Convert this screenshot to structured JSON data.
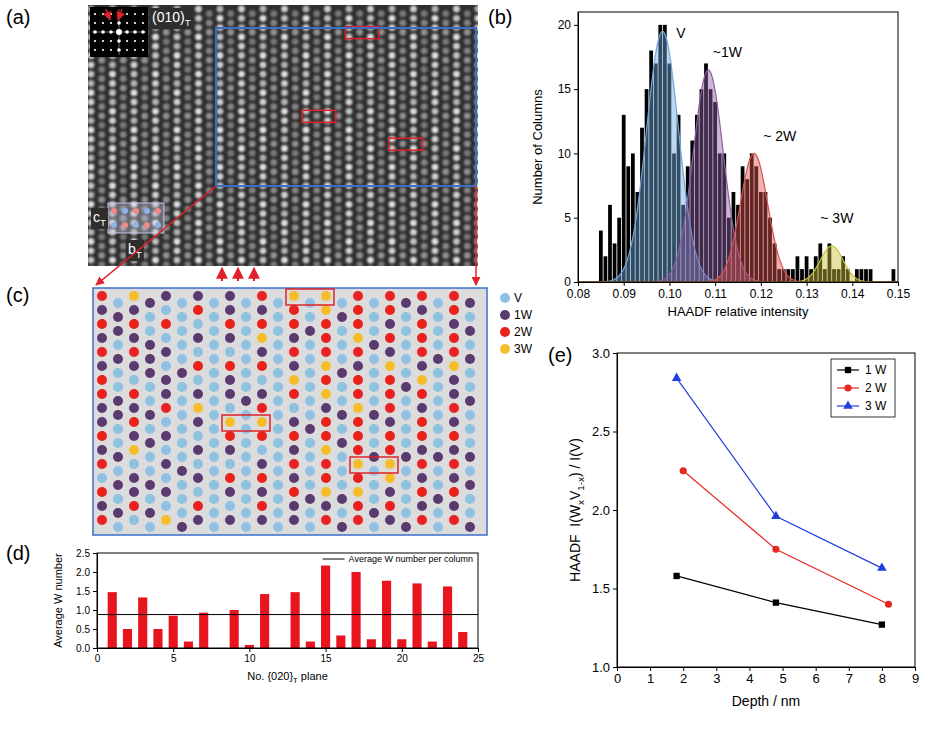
{
  "image_panel": {
    "panel_label": "(a)",
    "fft_label": [
      "(010)",
      "T"
    ],
    "axis_labels": [
      [
        "c",
        "T"
      ],
      [
        "b",
        "T"
      ]
    ]
  },
  "chart_data": [
    {
      "type": "histogram",
      "panel_label": "(b)",
      "xlabel": "HAADF relative intensity",
      "ylabel": "Number of Columns",
      "bins": [
        0.0845,
        0.0855,
        0.0865,
        0.0875,
        0.0885,
        0.0895,
        0.0905,
        0.0915,
        0.0925,
        0.0935,
        0.0945,
        0.0955,
        0.0965,
        0.0975,
        0.0985,
        0.0995,
        0.1005,
        0.1015,
        0.1025,
        0.1035,
        0.1045,
        0.1055,
        0.1065,
        0.1075,
        0.1085,
        0.1095,
        0.1105,
        0.1115,
        0.1125,
        0.1135,
        0.1145,
        0.1155,
        0.1165,
        0.1175,
        0.1185,
        0.1195,
        0.1205,
        0.1215,
        0.1225,
        0.1235,
        0.1245,
        0.1255,
        0.1265,
        0.1275,
        0.1285,
        0.1295,
        0.1305,
        0.1315,
        0.1325,
        0.1335,
        0.1345,
        0.1355,
        0.1365,
        0.1375,
        0.1385,
        0.1395,
        0.1405,
        0.1415,
        0.1425,
        0.1435,
        0.1445,
        0.1455,
        0.1465,
        0.1475,
        0.1485,
        0.1495
      ],
      "values": [
        4,
        2,
        6,
        3,
        5,
        13,
        9,
        10,
        7,
        12,
        15,
        18,
        17,
        20,
        20,
        17,
        10,
        13,
        6,
        9,
        11,
        13,
        15,
        17,
        15,
        14,
        10,
        10,
        5,
        7,
        6,
        9,
        8,
        10,
        9,
        7,
        7,
        5,
        3,
        1,
        1,
        1,
        1,
        2,
        1,
        2,
        1,
        2,
        3,
        1,
        3,
        1,
        1,
        2,
        1,
        0,
        1,
        1,
        1,
        1,
        0,
        0,
        0,
        0,
        1
      ],
      "color": "#000000",
      "xlim": [
        0.08,
        0.15
      ],
      "xticks": [
        0.08,
        0.09,
        {
          "value": 0.1,
          "label": "0.10"
        },
        0.11,
        0.12,
        0.13,
        0.14,
        0.15
      ],
      "ylim": [
        0,
        21
      ],
      "yticks": [
        0,
        5,
        10,
        15,
        20
      ],
      "fits": [
        {
          "center": 0.0985,
          "height": 19.5,
          "sigma": 0.0035,
          "color": "#6fa8dc"
        },
        {
          "center": 0.1085,
          "height": 16.5,
          "sigma": 0.0033,
          "color": "#8e5ea2"
        },
        {
          "center": 0.1185,
          "height": 10,
          "sigma": 0.003,
          "color": "#d9534f"
        },
        {
          "center": 0.1355,
          "height": 2.8,
          "sigma": 0.0025,
          "color": "#c9c23a"
        }
      ],
      "annotations": [
        {
          "text": "V",
          "x": 0.1015,
          "y": 19
        },
        {
          "text": "~1W",
          "x": 0.1095,
          "y": 17.5
        },
        {
          "text": "~ 2W",
          "x": 0.1205,
          "y": 11
        },
        {
          "text": "~ 3W",
          "x": 0.133,
          "y": 4.6
        }
      ]
    },
    {
      "type": "bar",
      "panel_label": "(d)",
      "xlabel": [
        "No. {020}",
        "T",
        " plane"
      ],
      "ylabel": "Average W number",
      "x": [
        1,
        2,
        3,
        4,
        5,
        6,
        7,
        8,
        9,
        10,
        11,
        12,
        13,
        14,
        15,
        16,
        17,
        18,
        19,
        20,
        21,
        22,
        23,
        24
      ],
      "values": [
        1.47,
        0.5,
        1.33,
        0.5,
        0.85,
        0.17,
        0.93,
        0,
        1.0,
        0.08,
        1.42,
        0,
        1.47,
        0.17,
        2.17,
        0.33,
        2.0,
        0.23,
        1.77,
        0.23,
        1.7,
        0.17,
        1.62,
        0.42
      ],
      "color": "#e8141e",
      "xlim": [
        0,
        25
      ],
      "xticks": [
        0,
        5,
        10,
        15,
        20,
        25
      ],
      "ylim": [
        0,
        2.5
      ],
      "yticks": [
        {
          "value": 0,
          "label": "0.0"
        },
        0.5,
        {
          "value": 1,
          "label": "1.0"
        },
        1.5,
        {
          "value": 2,
          "label": "2.0"
        },
        2.5
      ],
      "reference_line": {
        "value": 0.88,
        "label": "Average W number per column"
      },
      "legend": "top-right"
    },
    {
      "type": "line",
      "panel_label": "(e)",
      "xlabel": "Depth / nm",
      "ylabel": [
        "HAADF  I(W",
        "x",
        "V",
        "1-x",
        ") / I(V)"
      ],
      "xlim": [
        0,
        9
      ],
      "xticks": [
        0,
        1,
        2,
        3,
        4,
        5,
        6,
        7,
        8,
        9
      ],
      "ylim": [
        1,
        3
      ],
      "yticks": [
        {
          "value": 1,
          "label": "1.0"
        },
        1.5,
        {
          "value": 2,
          "label": "2.0"
        },
        2.5,
        {
          "value": 3,
          "label": "3.0"
        }
      ],
      "legend": "top-right",
      "series": [
        {
          "name": "1 W",
          "color": "#000000",
          "marker": "square",
          "line_style": "solid",
          "x": [
            1.8,
            4.8,
            8.0
          ],
          "values": [
            1.58,
            1.41,
            1.27
          ]
        },
        {
          "name": "2 W",
          "color": "#e8281e",
          "marker": "circle",
          "line_style": "solid",
          "x": [
            2.0,
            4.8,
            8.2
          ],
          "values": [
            2.25,
            1.75,
            1.4
          ]
        },
        {
          "name": "3 W",
          "color": "#1f3fe0",
          "marker": "triangle",
          "line_style": "solid",
          "x": [
            1.8,
            4.8,
            8.0
          ],
          "values": [
            2.84,
            1.96,
            1.63
          ]
        }
      ]
    }
  ],
  "map_panel": {
    "panel_label": "(c)",
    "legend": [
      {
        "label": "V",
        "color": "#8fc1e3"
      },
      {
        "label": "1W",
        "color": "#5b3a70"
      },
      {
        "label": "2W",
        "color": "#e8211c"
      },
      {
        "label": "3W",
        "color": "#f5bd2a"
      }
    ],
    "columns": [
      [
        2,
        1,
        2,
        1,
        2,
        1,
        2,
        2,
        1,
        1,
        2,
        1,
        2,
        0,
        2,
        1,
        2
      ],
      [
        0,
        1,
        1,
        0,
        1,
        0,
        0,
        1,
        1,
        0,
        0,
        1,
        0,
        1,
        0,
        1,
        0
      ],
      [
        3,
        1,
        2,
        1,
        2,
        1,
        0,
        2,
        1,
        2,
        1,
        3,
        0,
        1,
        1,
        2,
        0
      ],
      [
        1,
        0,
        0,
        1,
        1,
        1,
        0,
        0,
        1,
        0,
        1,
        0,
        0,
        1,
        0,
        1,
        0
      ],
      [
        1,
        0,
        2,
        0,
        1,
        0,
        1,
        1,
        2,
        0,
        1,
        0,
        1,
        0,
        1,
        0,
        3
      ],
      [
        0,
        0,
        0,
        0,
        0,
        1,
        0,
        0,
        0,
        0,
        0,
        0,
        1,
        0,
        0,
        0,
        1
      ],
      [
        1,
        2,
        0,
        1,
        0,
        2,
        0,
        1,
        3,
        1,
        0,
        1,
        0,
        1,
        0,
        2,
        1
      ],
      [
        0,
        0,
        0,
        0,
        0,
        0,
        0,
        0,
        0,
        0,
        0,
        0,
        0,
        0,
        0,
        0,
        0
      ],
      [
        1,
        1,
        2,
        1,
        0,
        2,
        1,
        1,
        0,
        3,
        2,
        1,
        0,
        2,
        1,
        0,
        1
      ],
      [
        0,
        0,
        0,
        0,
        0,
        0,
        0,
        1,
        0,
        0,
        0,
        0,
        0,
        0,
        0,
        0,
        0
      ],
      [
        2,
        1,
        2,
        3,
        1,
        2,
        0,
        1,
        2,
        3,
        2,
        0,
        1,
        2,
        1,
        2,
        1
      ],
      [
        0,
        0,
        0,
        0,
        0,
        0,
        0,
        0,
        0,
        0,
        0,
        0,
        0,
        0,
        0,
        0,
        0
      ],
      [
        3,
        2,
        2,
        1,
        2,
        1,
        3,
        2,
        0,
        1,
        2,
        1,
        2,
        1,
        2,
        1,
        1
      ],
      [
        0,
        0,
        1,
        0,
        0,
        0,
        0,
        0,
        0,
        1,
        0,
        0,
        0,
        0,
        1,
        0,
        0
      ],
      [
        3,
        3,
        2,
        2,
        2,
        3,
        2,
        3,
        1,
        2,
        2,
        3,
        2,
        2,
        3,
        1,
        2
      ],
      [
        0,
        1,
        0,
        0,
        0,
        1,
        0,
        0,
        1,
        0,
        1,
        0,
        0,
        0,
        1,
        0,
        1
      ],
      [
        2,
        2,
        2,
        3,
        2,
        1,
        2,
        2,
        3,
        2,
        2,
        2,
        3,
        2,
        3,
        2,
        2
      ],
      [
        0,
        0,
        0,
        1,
        0,
        0,
        0,
        0,
        1,
        0,
        0,
        1,
        0,
        0,
        0,
        1,
        0
      ],
      [
        2,
        2,
        1,
        2,
        1,
        3,
        2,
        2,
        2,
        1,
        2,
        2,
        3,
        3,
        1,
        2,
        1
      ],
      [
        1,
        0,
        0,
        0,
        0,
        0,
        1,
        0,
        0,
        0,
        0,
        1,
        0,
        0,
        0,
        0,
        1
      ],
      [
        2,
        1,
        2,
        2,
        2,
        1,
        3,
        2,
        1,
        2,
        2,
        1,
        2,
        1,
        2,
        1,
        2
      ],
      [
        0,
        0,
        0,
        0,
        1,
        0,
        0,
        0,
        0,
        0,
        0,
        1,
        0,
        0,
        1,
        0,
        0
      ],
      [
        2,
        2,
        1,
        2,
        2,
        3,
        1,
        1,
        2,
        1,
        2,
        1,
        2,
        1,
        2,
        1,
        2
      ],
      [
        1,
        0,
        1,
        0,
        1,
        0,
        0,
        1,
        0,
        0,
        0,
        1,
        0,
        1,
        0,
        0,
        1
      ]
    ],
    "highlights": [
      {
        "row": 0,
        "columns": [
          12,
          14
        ]
      },
      {
        "row": 9,
        "columns": [
          8,
          10
        ]
      },
      {
        "row": 12,
        "columns": [
          16,
          18
        ]
      }
    ]
  }
}
